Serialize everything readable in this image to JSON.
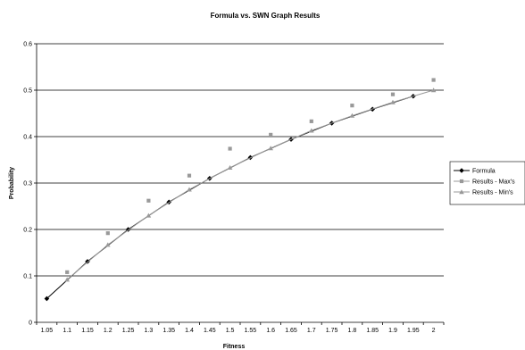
{
  "chart_data": {
    "type": "line",
    "title": "Formula vs. SWN Graph Results",
    "xlabel": "Fitness",
    "ylabel": "Probability",
    "categories": [
      "1.05",
      "1.1",
      "1.15",
      "1.2",
      "1.25",
      "1.3",
      "1.35",
      "1.4",
      "1.45",
      "1.5",
      "1.55",
      "1.6",
      "1.65",
      "1.7",
      "1.75",
      "1.8",
      "1.85",
      "1.9",
      "1.95",
      "2"
    ],
    "ylim": [
      0,
      0.6
    ],
    "yticks": [
      "0",
      "0.1",
      "0.2",
      "0.3",
      "0.4",
      "0.5",
      "0.6"
    ],
    "grid": "horizontal",
    "legend_position": "right",
    "series": [
      {
        "name": "Formula",
        "color": "#000000",
        "marker": "diamond",
        "points": [
          {
            "x": "1.05",
            "y": 0.051
          },
          {
            "x": "1.15",
            "y": 0.131
          },
          {
            "x": "1.25",
            "y": 0.2
          },
          {
            "x": "1.35",
            "y": 0.259
          },
          {
            "x": "1.45",
            "y": 0.31
          },
          {
            "x": "1.55",
            "y": 0.355
          },
          {
            "x": "1.65",
            "y": 0.394
          },
          {
            "x": "1.75",
            "y": 0.429
          },
          {
            "x": "1.85",
            "y": 0.459
          },
          {
            "x": "1.95",
            "y": 0.487
          }
        ]
      },
      {
        "name": "Results - Max's",
        "color": "#999999",
        "marker": "square",
        "points": [
          {
            "x": "1.1",
            "y": 0.108
          },
          {
            "x": "1.2",
            "y": 0.192
          },
          {
            "x": "1.3",
            "y": 0.262
          },
          {
            "x": "1.4",
            "y": 0.316
          },
          {
            "x": "1.5",
            "y": 0.374
          },
          {
            "x": "1.6",
            "y": 0.404
          },
          {
            "x": "1.7",
            "y": 0.433
          },
          {
            "x": "1.8",
            "y": 0.467
          },
          {
            "x": "1.9",
            "y": 0.491
          },
          {
            "x": "2",
            "y": 0.522
          }
        ]
      },
      {
        "name": "Results - Min's",
        "color": "#999999",
        "marker": "triangle",
        "points": [
          {
            "x": "1.1",
            "y": 0.092
          },
          {
            "x": "1.2",
            "y": 0.167
          },
          {
            "x": "1.3",
            "y": 0.23
          },
          {
            "x": "1.4",
            "y": 0.286
          },
          {
            "x": "1.5",
            "y": 0.333
          },
          {
            "x": "1.6",
            "y": 0.375
          },
          {
            "x": "1.7",
            "y": 0.413
          },
          {
            "x": "1.8",
            "y": 0.445
          },
          {
            "x": "1.9",
            "y": 0.474
          },
          {
            "x": "2",
            "y": 0.5
          }
        ]
      }
    ]
  }
}
